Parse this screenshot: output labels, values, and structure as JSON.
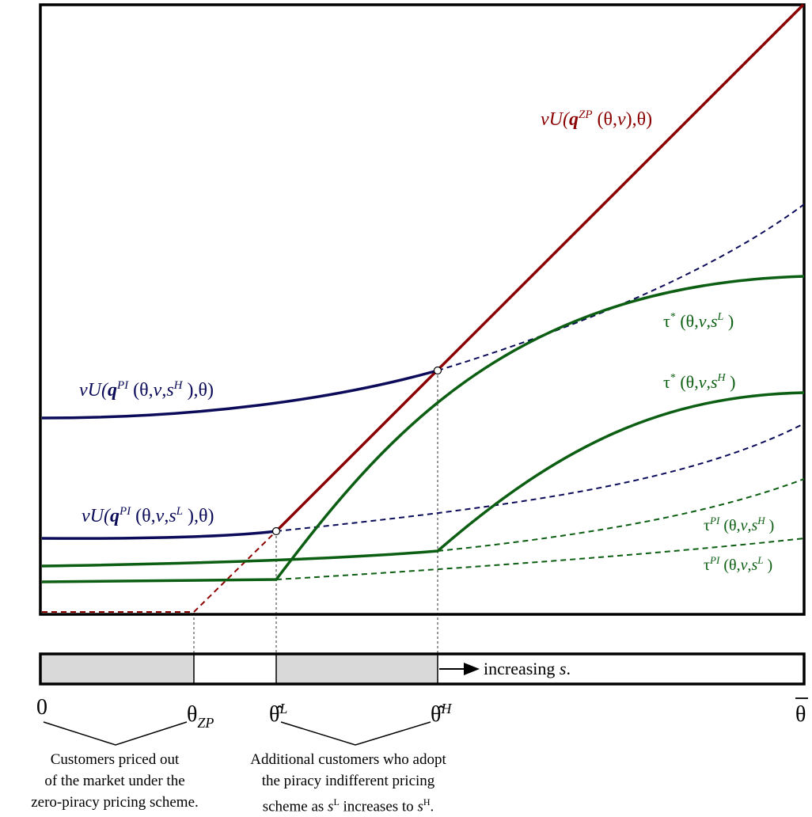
{
  "colors": {
    "zero_piracy": "#8b0000",
    "utility": "#0b0b5a",
    "transfer": "#0b5e12",
    "shade": "#d9d9d9",
    "frame": "#000000"
  },
  "curves": {
    "zero_piracy": {
      "main": "vU(",
      "q": "q",
      "sup": "ZP",
      "args": " (θ,",
      "v": "v",
      "tail": "),θ)"
    },
    "utility_high": {
      "main": "vU(",
      "q": "q",
      "sup": "PI",
      "args": " (θ,",
      "v": "v",
      "comma": ",",
      "s": "s",
      "s_sup": "H",
      "tail": " ),θ)"
    },
    "utility_low": {
      "main": "vU(",
      "q": "q",
      "sup": "PI",
      "args": " (θ,",
      "v": "v",
      "comma": ",",
      "s": "s",
      "s_sup": "L",
      "tail": " ),θ)"
    },
    "tau_star_low": {
      "sym": "τ",
      "sup": "*",
      "args": " (θ,",
      "v": "v",
      "comma": ",",
      "s": "s",
      "s_sup": "L",
      "tail": " )"
    },
    "tau_star_high": {
      "sym": "τ",
      "sup": "*",
      "args": " (θ,",
      "v": "v",
      "comma": ",",
      "s": "s",
      "s_sup": "H",
      "tail": " )"
    },
    "tau_pi_high": {
      "sym": "τ",
      "sup": "PI",
      "args": " (θ,",
      "v": "v",
      "comma": ",",
      "s": "s",
      "s_sup": "H",
      "tail": " )"
    },
    "tau_pi_low": {
      "sym": "τ",
      "sup": "PI",
      "args": " (θ,",
      "v": "v",
      "comma": ",",
      "s": "s",
      "s_sup": "L",
      "tail": " )"
    }
  },
  "axis": {
    "zero": "0",
    "theta_zp": {
      "sym": "θ",
      "sub": "ZP"
    },
    "theta_hat_l": {
      "sym": "θ̂",
      "sup": "L"
    },
    "theta_hat_h": {
      "sym": "θ̂",
      "sup": "H"
    },
    "theta_bar": "θ"
  },
  "bar": {
    "arrow_label": "increasing ",
    "arrow_var": "s",
    "arrow_end": "."
  },
  "notes": {
    "priced_out": [
      "Customers priced out",
      "of the market under the",
      "zero-piracy pricing scheme."
    ],
    "additional": [
      "Additional customers who adopt",
      "the piracy indifferent pricing",
      "scheme as ",
      "L",
      " increases to ",
      "H",
      "."
    ]
  }
}
